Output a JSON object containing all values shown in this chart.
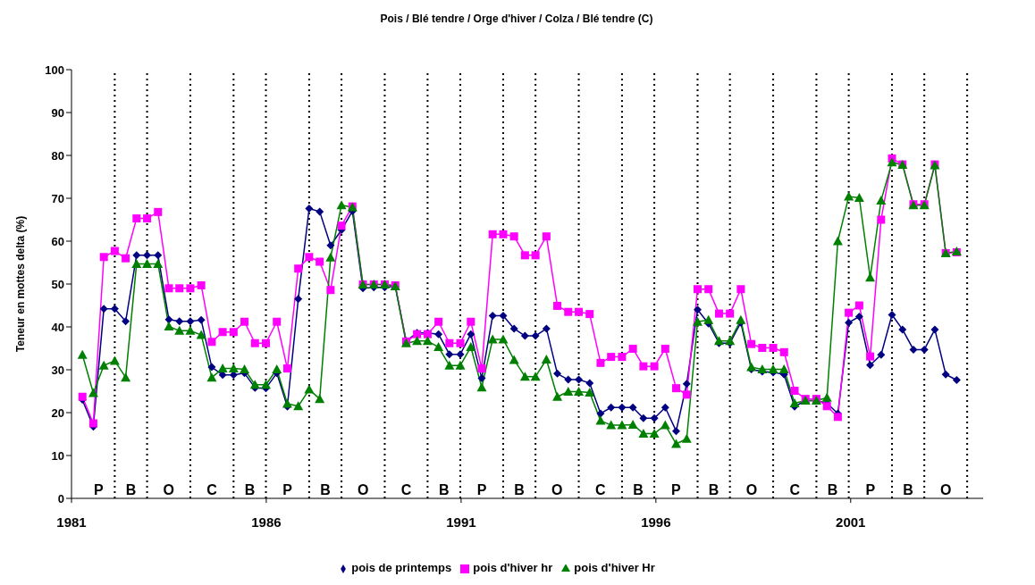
{
  "chart_data": {
    "type": "line",
    "title": "Pois / Blé tendre / Orge d'hiver / Colza / Blé tendre (C)",
    "ylabel": "Teneur en mottes delta (%)",
    "x": [
      1981.28,
      1981.56,
      1981.83,
      1982.11,
      1982.39,
      1982.67,
      1982.94,
      1983.22,
      1983.5,
      1983.77,
      1984.05,
      1984.33,
      1984.6,
      1984.88,
      1985.16,
      1985.44,
      1985.71,
      1985.99,
      1986.27,
      1986.54,
      1986.82,
      1987.1,
      1987.37,
      1987.65,
      1987.93,
      1988.21,
      1988.48,
      1988.76,
      1989.04,
      1989.31,
      1989.59,
      1989.87,
      1990.14,
      1990.42,
      1990.7,
      1990.98,
      1991.25,
      1991.53,
      1991.81,
      1992.08,
      1992.36,
      1992.64,
      1992.91,
      1993.19,
      1993.47,
      1993.75,
      1994.02,
      1994.3,
      1994.58,
      1994.85,
      1995.13,
      1995.41,
      1995.68,
      1995.96,
      1996.24,
      1996.52,
      1996.79,
      1997.07,
      1997.35,
      1997.62,
      1997.9,
      1998.18,
      1998.45,
      1998.73,
      1999.01,
      1999.29,
      1999.56,
      1999.84,
      2000.12,
      2000.39,
      2000.67,
      2000.95,
      2001.22,
      2001.5,
      2001.78,
      2002.06,
      2002.33,
      2002.61,
      2002.89,
      2003.16,
      2003.44,
      2003.72
    ],
    "series": [
      {
        "name": "pois de printemps",
        "color": "#000080",
        "marker": "diamond",
        "values": [
          23.0,
          16.7,
          44.2,
          44.2,
          41.3,
          56.7,
          56.7,
          56.7,
          41.7,
          41.3,
          41.3,
          41.6,
          30.6,
          28.8,
          28.8,
          29.2,
          25.8,
          25.7,
          29.2,
          21.4,
          46.5,
          67.6,
          66.9,
          59.0,
          62.6,
          67.0,
          49.0,
          49.2,
          49.2,
          49.5,
          36.7,
          38.6,
          38.6,
          38.3,
          33.6,
          33.6,
          38.3,
          28.0,
          42.6,
          42.6,
          39.6,
          37.9,
          37.9,
          39.6,
          29.1,
          27.7,
          27.7,
          26.9,
          19.8,
          21.2,
          21.2,
          21.2,
          18.7,
          18.7,
          21.2,
          15.7,
          26.7,
          44.0,
          40.8,
          36.2,
          36.2,
          41.0,
          30.1,
          29.6,
          29.4,
          28.9,
          21.4,
          22.8,
          22.8,
          22.2,
          19.8,
          41.0,
          42.4,
          31.1,
          33.5,
          42.8,
          39.4,
          34.7,
          34.7,
          39.4,
          28.9,
          27.6
        ]
      },
      {
        "name": "pois d'hiver hr",
        "color": "#ff00ff",
        "marker": "square",
        "values": [
          23.7,
          17.5,
          56.3,
          57.7,
          56.0,
          65.3,
          65.3,
          66.8,
          49.0,
          49.0,
          49.0,
          49.7,
          36.5,
          38.8,
          38.8,
          41.2,
          36.2,
          36.2,
          41.2,
          30.3,
          53.6,
          56.3,
          55.2,
          48.6,
          63.6,
          68.1,
          49.9,
          49.9,
          49.9,
          49.7,
          36.6,
          38.3,
          38.3,
          41.2,
          36.2,
          36.2,
          41.2,
          30.3,
          61.6,
          61.6,
          61.1,
          56.7,
          56.7,
          61.1,
          44.9,
          43.5,
          43.5,
          43.0,
          31.6,
          33.0,
          33.0,
          34.9,
          30.8,
          30.8,
          34.9,
          25.7,
          24.2,
          48.8,
          48.8,
          43.1,
          43.1,
          48.8,
          36.0,
          35.1,
          35.1,
          34.1,
          25.1,
          23.2,
          23.2,
          21.5,
          19.0,
          43.3,
          45.0,
          33.1,
          65.0,
          79.3,
          77.9,
          68.6,
          68.6,
          77.9,
          57.2,
          57.4
        ]
      },
      {
        "name": "pois d'hiver Hr",
        "color": "#008000",
        "marker": "triangle",
        "values": [
          33.5,
          24.6,
          31.0,
          32.1,
          28.2,
          54.7,
          54.7,
          54.7,
          40.1,
          39.1,
          39.1,
          38.1,
          28.2,
          30.3,
          30.3,
          30.1,
          26.5,
          26.5,
          30.1,
          22.1,
          21.5,
          25.4,
          23.2,
          56.2,
          68.4,
          67.9,
          49.9,
          49.9,
          49.9,
          49.5,
          36.2,
          36.7,
          36.7,
          35.3,
          31.0,
          31.0,
          35.3,
          25.9,
          37.1,
          37.1,
          32.3,
          28.4,
          28.4,
          32.4,
          23.7,
          24.9,
          24.9,
          24.7,
          18.1,
          17.1,
          17.1,
          17.2,
          15.1,
          15.1,
          17.1,
          12.7,
          13.9,
          41.2,
          41.6,
          36.7,
          36.7,
          41.6,
          30.6,
          30.1,
          30.1,
          30.1,
          22.2,
          22.8,
          22.8,
          23.5,
          60.0,
          70.4,
          70.1,
          51.5,
          69.5,
          78.4,
          77.8,
          68.4,
          68.4,
          77.7,
          57.2,
          57.6
        ]
      }
    ],
    "xlim": [
      1981,
      2004.4
    ],
    "xticks": [
      1981,
      1986,
      1991,
      1996,
      2001
    ],
    "ylim": [
      0,
      100
    ],
    "yticks": [
      0,
      10,
      20,
      30,
      40,
      50,
      60,
      70,
      80,
      90,
      100
    ],
    "ref_lines": [
      {
        "axis": "x",
        "value": 1982.11,
        "line_style": "dotted",
        "color": "#000000"
      },
      {
        "axis": "x",
        "value": 1982.94,
        "line_style": "dotted",
        "color": "#000000"
      },
      {
        "axis": "x",
        "value": 1984.05,
        "line_style": "dotted",
        "color": "#000000"
      },
      {
        "axis": "x",
        "value": 1985.16,
        "line_style": "dotted",
        "color": "#000000"
      },
      {
        "axis": "x",
        "value": 1985.99,
        "line_style": "dotted",
        "color": "#000000"
      },
      {
        "axis": "x",
        "value": 1987.1,
        "line_style": "dotted",
        "color": "#000000"
      },
      {
        "axis": "x",
        "value": 1987.93,
        "line_style": "dotted",
        "color": "#000000"
      },
      {
        "axis": "x",
        "value": 1989.04,
        "line_style": "dotted",
        "color": "#000000"
      },
      {
        "axis": "x",
        "value": 1990.14,
        "line_style": "dotted",
        "color": "#000000"
      },
      {
        "axis": "x",
        "value": 1990.98,
        "line_style": "dotted",
        "color": "#000000"
      },
      {
        "axis": "x",
        "value": 1992.08,
        "line_style": "dotted",
        "color": "#000000"
      },
      {
        "axis": "x",
        "value": 1992.91,
        "line_style": "dotted",
        "color": "#000000"
      },
      {
        "axis": "x",
        "value": 1994.02,
        "line_style": "dotted",
        "color": "#000000"
      },
      {
        "axis": "x",
        "value": 1995.13,
        "line_style": "dotted",
        "color": "#000000"
      },
      {
        "axis": "x",
        "value": 1995.96,
        "line_style": "dotted",
        "color": "#000000"
      },
      {
        "axis": "x",
        "value": 1997.07,
        "line_style": "dotted",
        "color": "#000000"
      },
      {
        "axis": "x",
        "value": 1997.9,
        "line_style": "dotted",
        "color": "#000000"
      },
      {
        "axis": "x",
        "value": 1999.01,
        "line_style": "dotted",
        "color": "#000000"
      },
      {
        "axis": "x",
        "value": 2000.12,
        "line_style": "dotted",
        "color": "#000000"
      },
      {
        "axis": "x",
        "value": 2000.95,
        "line_style": "dotted",
        "color": "#000000"
      },
      {
        "axis": "x",
        "value": 2002.06,
        "line_style": "dotted",
        "color": "#000000"
      },
      {
        "axis": "x",
        "value": 2002.89,
        "line_style": "dotted",
        "color": "#000000"
      },
      {
        "axis": "x",
        "value": 2003.99,
        "line_style": "dotted",
        "color": "#000000"
      }
    ],
    "annotations": [
      "P",
      "B",
      "O",
      "C",
      "B",
      "P",
      "B",
      "O",
      "C",
      "B",
      "P",
      "B",
      "O",
      "C",
      "B",
      "P",
      "B",
      "O",
      "C",
      "B",
      "P",
      "B",
      "O"
    ],
    "grid": false,
    "legend": "bottom",
    "line_style": "solid"
  }
}
